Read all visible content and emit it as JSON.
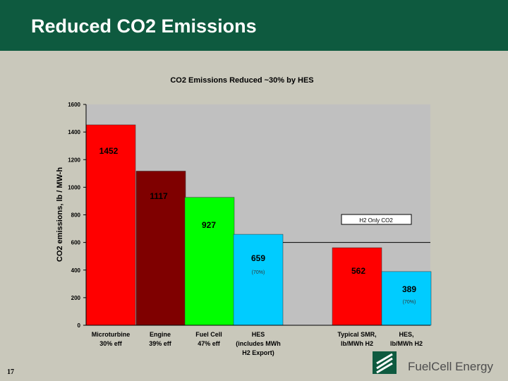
{
  "slide": {
    "title": "Reduced CO2 Emissions",
    "page_number": "17",
    "logo_text": "FuelCell Energy"
  },
  "colors": {
    "header": "#0e5a3f",
    "background": "#c9c8bb",
    "plot_area": "#c0c0c0",
    "microturbine": "#ff0000",
    "engine": "#7f0000",
    "fuel_cell": "#00ff00",
    "hes": "#00ccff",
    "smr": "#ff0000",
    "hes_h2": "#00ccff"
  },
  "chart_data": {
    "type": "bar",
    "title": "CO2 Emissions Reduced ~30% by HES",
    "xlabel": "",
    "ylabel": "CO2 emissions, lb / MW-h",
    "ylim": [
      0,
      1600
    ],
    "yticks": [
      0,
      200,
      400,
      600,
      800,
      1000,
      1200,
      1400,
      1600
    ],
    "grid": false,
    "categories": [
      "Microturbine\n30% eff",
      "Engine\n39% eff",
      "Fuel Cell\n47% eff",
      "HES\n(includes MWh\nH2 Export)",
      "Typical SMR,\nlb/MWh H2",
      "HES,\nlb/MWh H2"
    ],
    "values": [
      1452,
      1117,
      927,
      659,
      562,
      389
    ],
    "value_labels": [
      "1452",
      "1117",
      "927",
      "659",
      "562",
      "389"
    ],
    "notes": [
      "",
      "",
      "",
      "(70%)",
      "",
      "(70%)"
    ],
    "bar_colors": [
      "#ff0000",
      "#7f0000",
      "#00ff00",
      "#00ccff",
      "#ff0000",
      "#00ccff"
    ],
    "reference_line": {
      "value": 600
    },
    "annotation": "H2 Only CO2"
  }
}
